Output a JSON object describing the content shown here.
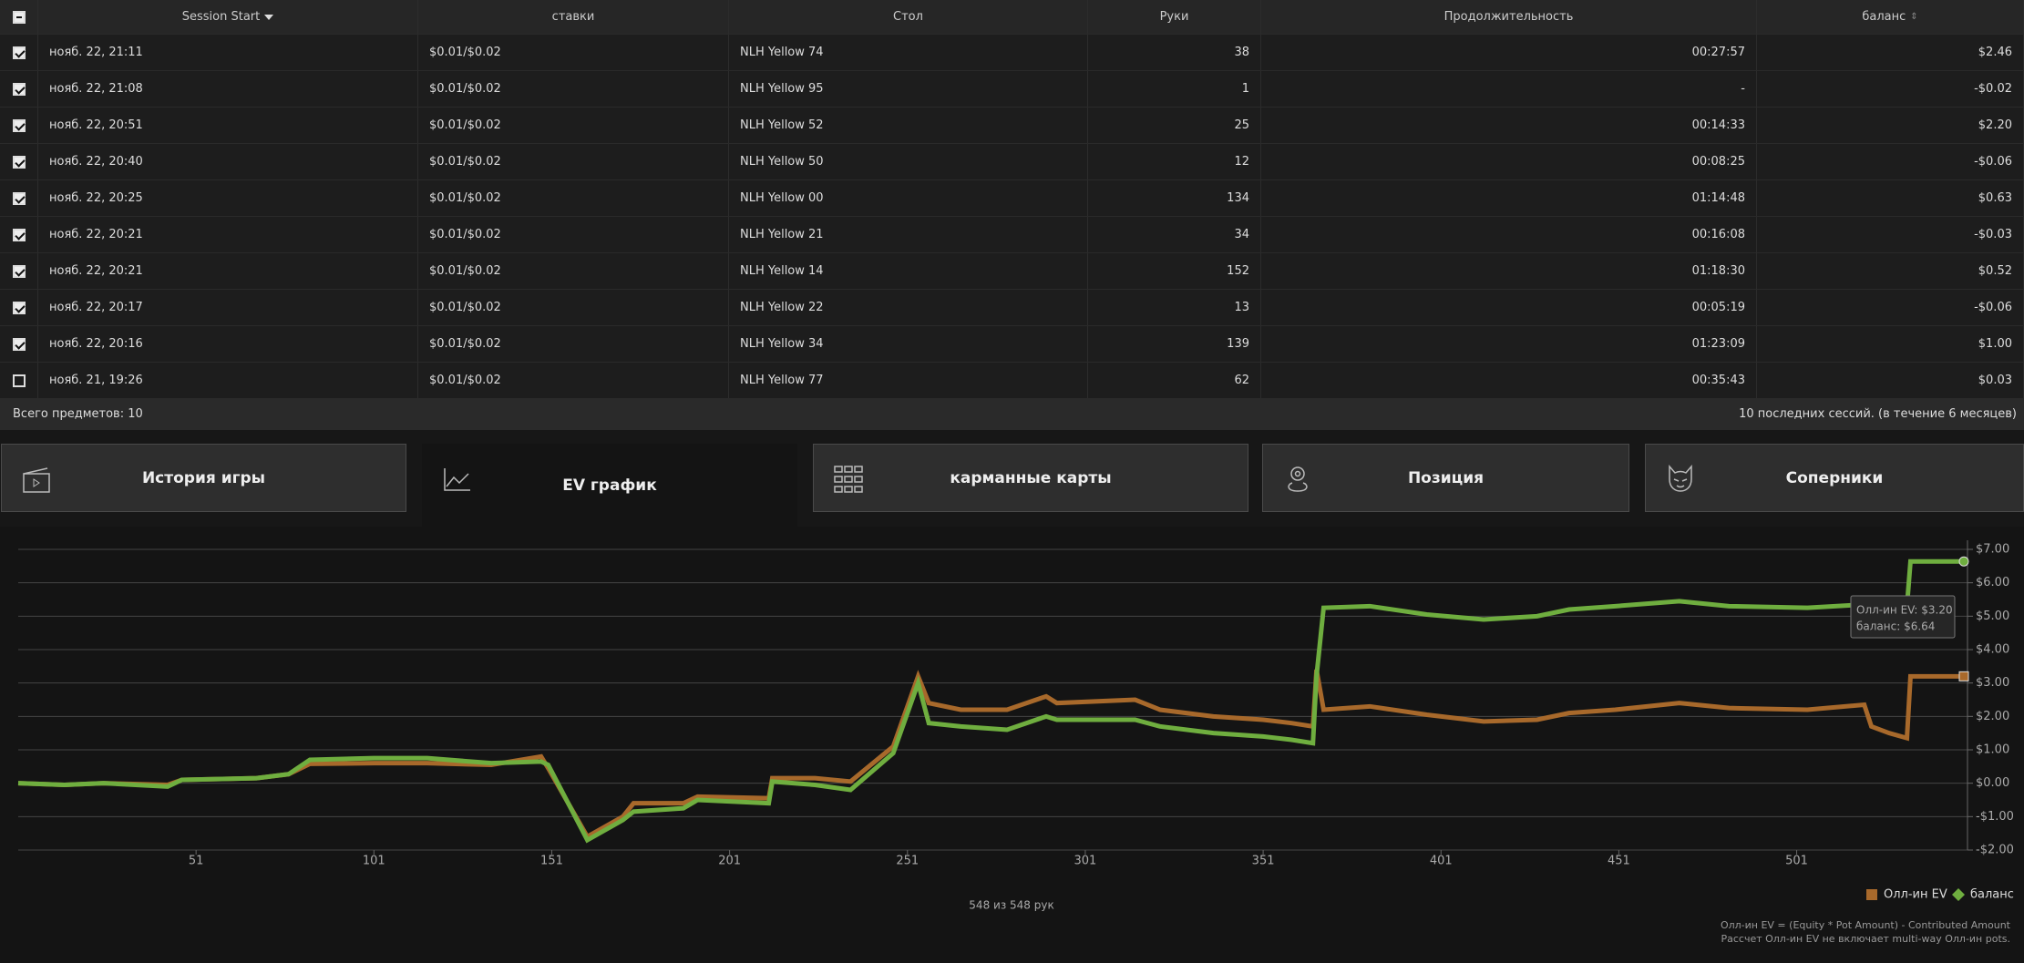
{
  "table": {
    "header": [
      "Session Start",
      "ставки",
      "Стол",
      "Руки",
      "Продолжительность",
      "баланс"
    ],
    "rows": [
      [
        "нояб. 22, 21:11",
        "$0.01/$0.02",
        "NLH Yellow 74",
        38,
        "00:27:57",
        "$2.46"
      ],
      [
        "нояб. 22, 21:08",
        "$0.01/$0.02",
        "NLH Yellow 95",
        1,
        "-",
        "-$0.02"
      ],
      [
        "нояб. 22, 20:51",
        "$0.01/$0.02",
        "NLH Yellow 52",
        25,
        "00:14:33",
        "$2.20"
      ],
      [
        "нояб. 22, 20:40",
        "$0.01/$0.02",
        "NLH Yellow 50",
        12,
        "00:08:25",
        "-$0.06"
      ],
      [
        "нояб. 22, 20:25",
        "$0.01/$0.02",
        "NLH Yellow 00",
        134,
        "01:14:48",
        "$0.63"
      ],
      [
        "нояб. 22, 20:21",
        "$0.01/$0.02",
        "NLH Yellow 21",
        34,
        "00:16:08",
        "-$0.03"
      ],
      [
        "нояб. 22, 20:21",
        "$0.01/$0.02",
        "NLH Yellow 14",
        152,
        "01:18:30",
        "$0.52"
      ],
      [
        "нояб. 22, 20:17",
        "$0.01/$0.02",
        "NLH Yellow 22",
        13,
        "00:05:19",
        "-$0.06"
      ],
      [
        "нояб. 22, 20:16",
        "$0.01/$0.02",
        "NLH Yellow 34",
        139,
        "01:23:09",
        "$1.00"
      ],
      [
        "нояб. 21, 19:26",
        "$0.01/$0.02",
        "NLH Yellow 77",
        62,
        "00:35:43",
        "$0.03"
      ]
    ],
    "checked": [
      true,
      true,
      true,
      true,
      true,
      true,
      true,
      true,
      true,
      false
    ]
  },
  "footer": {
    "left": "Всего предметов: 10",
    "right": "10 последних сессий. (в течение 6 месяцев)"
  },
  "tabs": [
    {
      "label": "История игры",
      "active": false
    },
    {
      "label": "EV график",
      "active": true
    },
    {
      "label": "карманные карты",
      "active": false
    },
    {
      "label": "Позиция",
      "active": false
    },
    {
      "label": "Соперники",
      "active": false
    }
  ],
  "chart_data": {
    "type": "line",
    "x": [
      1,
      14,
      25,
      43,
      47,
      68,
      77,
      83,
      101,
      116,
      134,
      148,
      150,
      161,
      171,
      174,
      188,
      192,
      212,
      213,
      225,
      235,
      247,
      254,
      257,
      266,
      279,
      290,
      293,
      315,
      322,
      337,
      351,
      359,
      365,
      366,
      368,
      381,
      397,
      413,
      428,
      437,
      450,
      468,
      482,
      504,
      520,
      522,
      527,
      532,
      533,
      548
    ],
    "series": [
      {
        "name": "Олл-ин EV",
        "color": "#a8692b",
        "values": [
          0,
          -0.05,
          0,
          -0.05,
          0.1,
          0.15,
          0.27,
          0.58,
          0.6,
          0.6,
          0.55,
          0.8,
          0.45,
          -1.6,
          -1.0,
          -0.6,
          -0.6,
          -0.4,
          -0.45,
          0.15,
          0.15,
          0.05,
          1.1,
          3.2,
          2.4,
          2.2,
          2.2,
          2.6,
          2.4,
          2.5,
          2.2,
          2.0,
          1.9,
          1.8,
          1.7,
          3.4,
          2.2,
          2.3,
          2.05,
          1.85,
          1.9,
          2.1,
          2.2,
          2.4,
          2.25,
          2.2,
          2.35,
          1.7,
          1.5,
          1.35,
          3.2,
          3.2
        ]
      },
      {
        "name": "баланс",
        "color": "#6fae3f",
        "values": [
          0,
          -0.05,
          0,
          -0.1,
          0.1,
          0.15,
          0.27,
          0.7,
          0.75,
          0.75,
          0.6,
          0.65,
          0.55,
          -1.7,
          -1.1,
          -0.85,
          -0.75,
          -0.5,
          -0.6,
          0.05,
          -0.05,
          -0.2,
          0.9,
          3.0,
          1.8,
          1.7,
          1.6,
          2.0,
          1.9,
          1.9,
          1.7,
          1.5,
          1.4,
          1.3,
          1.2,
          3.2,
          5.25,
          5.3,
          5.05,
          4.9,
          5.0,
          5.2,
          5.3,
          5.45,
          5.3,
          5.25,
          5.35,
          5.3,
          5.25,
          5.3,
          6.64,
          6.64
        ]
      }
    ],
    "xlim": [
      1,
      548
    ],
    "xticks": [
      51,
      101,
      151,
      201,
      251,
      301,
      351,
      401,
      451,
      501
    ],
    "ylim": [
      -2,
      7
    ],
    "yticks": [
      {
        "value": 7,
        "label": "$7.00"
      },
      {
        "value": 6,
        "label": "$6.00"
      },
      {
        "value": 5,
        "label": "$5.00"
      },
      {
        "value": 4,
        "label": "$4.00"
      },
      {
        "value": 3,
        "label": "$3.00"
      },
      {
        "value": 2,
        "label": "$2.00"
      },
      {
        "value": 1,
        "label": "$1.00"
      },
      {
        "value": 0,
        "label": "$0.00"
      },
      {
        "value": -1,
        "label": "-$1.00"
      },
      {
        "value": -2,
        "label": "-$2.00"
      }
    ],
    "grid": true,
    "tooltip": [
      "Олл-ин EV: $3.20",
      "баланс: $6.64"
    ],
    "caption": "548 из 548 рук",
    "notes": [
      "Олл-ин EV = (Equity * Pot Amount) - Contributed Amount",
      "Рассчет Олл-ин EV не включает multi-way Олл-ин pots."
    ]
  }
}
